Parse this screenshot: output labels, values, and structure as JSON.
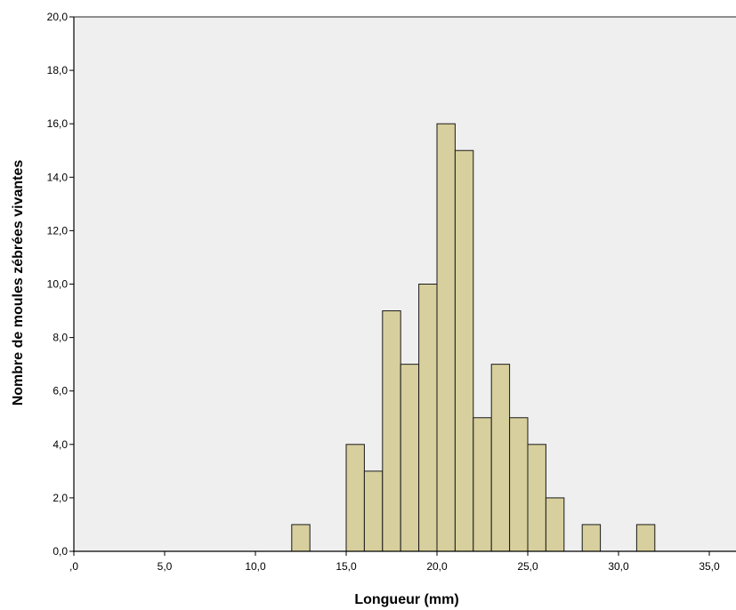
{
  "chart_data": {
    "type": "bar",
    "subtype": "histogram",
    "title": "",
    "xlabel": "Longueur (mm)",
    "ylabel": "Nombre de moules zébrées vivantes",
    "xlim": [
      0,
      36.5
    ],
    "ylim": [
      0,
      20
    ],
    "grid": false,
    "legend": "none",
    "bin_width": 1,
    "x_ticks": [
      {
        "value": 0,
        "label": ",0"
      },
      {
        "value": 5,
        "label": "5,0"
      },
      {
        "value": 10,
        "label": "10,0"
      },
      {
        "value": 15,
        "label": "15,0"
      },
      {
        "value": 20,
        "label": "20,0"
      },
      {
        "value": 25,
        "label": "25,0"
      },
      {
        "value": 30,
        "label": "30,0"
      },
      {
        "value": 35,
        "label": "35,0"
      }
    ],
    "y_ticks": [
      {
        "value": 0,
        "label": "0,0"
      },
      {
        "value": 2,
        "label": "2,0"
      },
      {
        "value": 4,
        "label": "4,0"
      },
      {
        "value": 6,
        "label": "6,0"
      },
      {
        "value": 8,
        "label": "8,0"
      },
      {
        "value": 10,
        "label": "10,0"
      },
      {
        "value": 12,
        "label": "12,0"
      },
      {
        "value": 14,
        "label": "14,0"
      },
      {
        "value": 16,
        "label": "16,0"
      },
      {
        "value": 18,
        "label": "18,0"
      },
      {
        "value": 20,
        "label": "20,0"
      }
    ],
    "bins": [
      {
        "x_start": 12,
        "x_end": 13,
        "count": 1
      },
      {
        "x_start": 15,
        "x_end": 16,
        "count": 4
      },
      {
        "x_start": 16,
        "x_end": 17,
        "count": 3
      },
      {
        "x_start": 17,
        "x_end": 18,
        "count": 9
      },
      {
        "x_start": 18,
        "x_end": 19,
        "count": 7
      },
      {
        "x_start": 19,
        "x_end": 20,
        "count": 10
      },
      {
        "x_start": 20,
        "x_end": 21,
        "count": 16
      },
      {
        "x_start": 21,
        "x_end": 22,
        "count": 15
      },
      {
        "x_start": 22,
        "x_end": 23,
        "count": 5
      },
      {
        "x_start": 23,
        "x_end": 24,
        "count": 7
      },
      {
        "x_start": 24,
        "x_end": 25,
        "count": 5
      },
      {
        "x_start": 25,
        "x_end": 26,
        "count": 4
      },
      {
        "x_start": 26,
        "x_end": 27,
        "count": 2
      },
      {
        "x_start": 28,
        "x_end": 29,
        "count": 1
      },
      {
        "x_start": 31,
        "x_end": 32,
        "count": 1
      }
    ],
    "colors": {
      "plot_background": "#efefef",
      "bar_fill": "#d7cf9d",
      "bar_stroke": "#1a1a1a",
      "axis": "#000000",
      "frame": "#6b6b6b"
    }
  }
}
